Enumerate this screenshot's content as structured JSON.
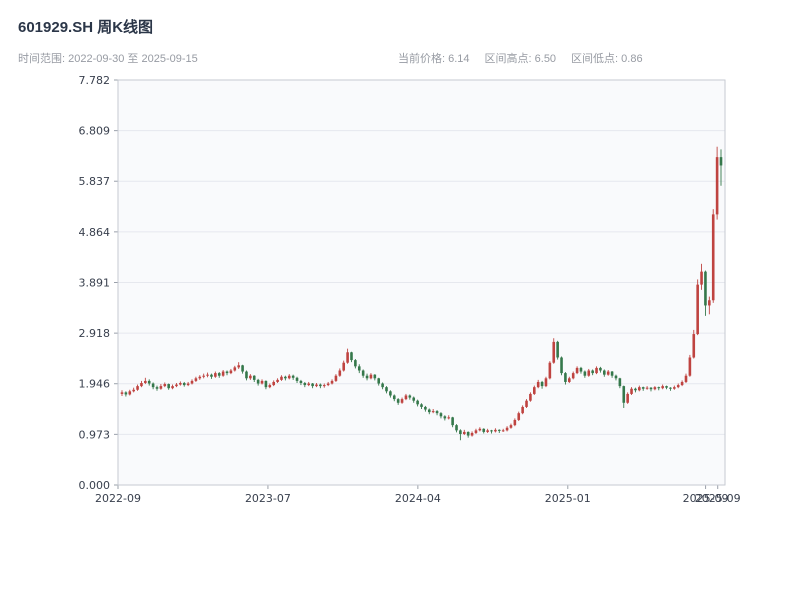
{
  "header": {
    "title": "601929.SH 周K线图",
    "time_range": "时间范围: 2022-09-30 至 2025-09-15",
    "stats": {
      "current": "当前价格: 6.14",
      "high": "区间高点: 6.50",
      "low": "区间低点: 0.86"
    }
  },
  "chart_data": {
    "type": "candlestick",
    "title": "601929.SH 周K线图",
    "symbol": "601929.SH",
    "interval": "weekly",
    "date_start": "2022-09-30",
    "date_end": "2025-09-15",
    "current_price": 6.14,
    "range_high": 6.5,
    "range_low": 0.86,
    "y_max": 7.782,
    "ylim": [
      0,
      7.782
    ],
    "grid": true,
    "up_color": "#bf4340",
    "down_color": "#35784b",
    "y_ticks": [
      "0.000",
      "0.973",
      "1.946",
      "2.918",
      "3.891",
      "4.864",
      "5.837",
      "6.809",
      "7.782"
    ],
    "x_ticks": [
      {
        "label": "2022-09",
        "pos": 0.0
      },
      {
        "label": "2023-07",
        "pos": 0.247
      },
      {
        "label": "2024-04",
        "pos": 0.494
      },
      {
        "label": "2025-01",
        "pos": 0.741
      },
      {
        "label": "2025-09",
        "pos": 0.968
      },
      {
        "label": "2025-09",
        "pos": 0.988
      }
    ],
    "candles": [
      [
        1.75,
        1.82,
        1.71,
        1.78
      ],
      [
        1.78,
        1.8,
        1.7,
        1.74
      ],
      [
        1.74,
        1.83,
        1.72,
        1.8
      ],
      [
        1.8,
        1.87,
        1.78,
        1.83
      ],
      [
        1.83,
        1.93,
        1.81,
        1.9
      ],
      [
        1.9,
        2.0,
        1.88,
        1.96
      ],
      [
        1.96,
        2.06,
        1.94,
        2.0
      ],
      [
        2.0,
        2.03,
        1.91,
        1.95
      ],
      [
        1.95,
        1.97,
        1.84,
        1.88
      ],
      [
        1.88,
        1.91,
        1.81,
        1.85
      ],
      [
        1.85,
        1.94,
        1.83,
        1.9
      ],
      [
        1.9,
        1.97,
        1.88,
        1.94
      ],
      [
        1.94,
        1.95,
        1.83,
        1.86
      ],
      [
        1.86,
        1.93,
        1.84,
        1.9
      ],
      [
        1.9,
        1.96,
        1.88,
        1.93
      ],
      [
        1.93,
        1.99,
        1.91,
        1.96
      ],
      [
        1.96,
        1.98,
        1.89,
        1.92
      ],
      [
        1.92,
        1.98,
        1.9,
        1.95
      ],
      [
        1.95,
        2.03,
        1.93,
        2.0
      ],
      [
        2.0,
        2.08,
        1.98,
        2.05
      ],
      [
        2.05,
        2.11,
        2.02,
        2.08
      ],
      [
        2.08,
        2.14,
        2.05,
        2.1
      ],
      [
        2.1,
        2.16,
        2.07,
        2.12
      ],
      [
        2.12,
        2.14,
        2.04,
        2.08
      ],
      [
        2.08,
        2.18,
        2.06,
        2.15
      ],
      [
        2.15,
        2.17,
        2.06,
        2.1
      ],
      [
        2.1,
        2.21,
        2.08,
        2.18
      ],
      [
        2.18,
        2.2,
        2.11,
        2.15
      ],
      [
        2.15,
        2.23,
        2.13,
        2.2
      ],
      [
        2.2,
        2.29,
        2.18,
        2.26
      ],
      [
        2.26,
        2.36,
        2.23,
        2.3
      ],
      [
        2.3,
        2.31,
        2.14,
        2.18
      ],
      [
        2.18,
        2.2,
        2.01,
        2.05
      ],
      [
        2.05,
        2.13,
        2.02,
        2.1
      ],
      [
        2.1,
        2.11,
        1.98,
        2.02
      ],
      [
        2.02,
        2.04,
        1.91,
        1.95
      ],
      [
        1.95,
        2.03,
        1.93,
        2.0
      ],
      [
        2.0,
        2.01,
        1.84,
        1.88
      ],
      [
        1.88,
        1.95,
        1.86,
        1.92
      ],
      [
        1.92,
        2.01,
        1.9,
        1.98
      ],
      [
        1.98,
        2.05,
        1.96,
        2.02
      ],
      [
        2.02,
        2.11,
        2.0,
        2.08
      ],
      [
        2.08,
        2.1,
        2.01,
        2.05
      ],
      [
        2.05,
        2.13,
        2.03,
        2.1
      ],
      [
        2.1,
        2.12,
        2.02,
        2.06
      ],
      [
        2.06,
        2.08,
        1.96,
        2.0
      ],
      [
        2.0,
        2.02,
        1.92,
        1.96
      ],
      [
        1.96,
        1.98,
        1.88,
        1.92
      ],
      [
        1.92,
        1.98,
        1.9,
        1.95
      ],
      [
        1.95,
        1.96,
        1.86,
        1.9
      ],
      [
        1.9,
        1.96,
        1.88,
        1.93
      ],
      [
        1.93,
        1.95,
        1.86,
        1.9
      ],
      [
        1.9,
        1.95,
        1.87,
        1.92
      ],
      [
        1.92,
        1.98,
        1.9,
        1.95
      ],
      [
        1.95,
        2.03,
        1.93,
        2.0
      ],
      [
        2.0,
        2.13,
        1.98,
        2.1
      ],
      [
        2.1,
        2.24,
        2.08,
        2.2
      ],
      [
        2.2,
        2.39,
        2.18,
        2.35
      ],
      [
        2.35,
        2.62,
        2.33,
        2.55
      ],
      [
        2.55,
        2.56,
        2.36,
        2.4
      ],
      [
        2.4,
        2.42,
        2.24,
        2.28
      ],
      [
        2.28,
        2.32,
        2.15,
        2.2
      ],
      [
        2.2,
        2.22,
        2.06,
        2.1
      ],
      [
        2.1,
        2.14,
        2.01,
        2.05
      ],
      [
        2.05,
        2.15,
        2.03,
        2.12
      ],
      [
        2.12,
        2.13,
        2.01,
        2.05
      ],
      [
        2.05,
        2.06,
        1.91,
        1.95
      ],
      [
        1.95,
        1.97,
        1.84,
        1.88
      ],
      [
        1.88,
        1.9,
        1.76,
        1.8
      ],
      [
        1.8,
        1.82,
        1.68,
        1.72
      ],
      [
        1.72,
        1.74,
        1.61,
        1.65
      ],
      [
        1.65,
        1.67,
        1.54,
        1.58
      ],
      [
        1.58,
        1.68,
        1.56,
        1.65
      ],
      [
        1.65,
        1.75,
        1.63,
        1.72
      ],
      [
        1.72,
        1.74,
        1.64,
        1.68
      ],
      [
        1.68,
        1.7,
        1.58,
        1.62
      ],
      [
        1.62,
        1.64,
        1.51,
        1.55
      ],
      [
        1.55,
        1.57,
        1.46,
        1.5
      ],
      [
        1.5,
        1.52,
        1.41,
        1.45
      ],
      [
        1.45,
        1.47,
        1.36,
        1.4
      ],
      [
        1.4,
        1.46,
        1.38,
        1.42
      ],
      [
        1.42,
        1.44,
        1.34,
        1.38
      ],
      [
        1.38,
        1.4,
        1.28,
        1.32
      ],
      [
        1.32,
        1.34,
        1.24,
        1.28
      ],
      [
        1.28,
        1.34,
        1.26,
        1.3
      ],
      [
        1.3,
        1.31,
        1.11,
        1.15
      ],
      [
        1.15,
        1.17,
        1.01,
        1.05
      ],
      [
        1.05,
        1.07,
        0.86,
        0.98
      ],
      [
        0.98,
        1.06,
        0.96,
        1.02
      ],
      [
        1.02,
        1.03,
        0.91,
        0.95
      ],
      [
        0.95,
        1.03,
        0.93,
        1.0
      ],
      [
        1.0,
        1.08,
        0.98,
        1.05
      ],
      [
        1.05,
        1.11,
        1.03,
        1.08
      ],
      [
        1.08,
        1.09,
        0.99,
        1.02
      ],
      [
        1.02,
        1.08,
        1.0,
        1.05
      ],
      [
        1.05,
        1.06,
        0.99,
        1.03
      ],
      [
        1.03,
        1.09,
        1.01,
        1.06
      ],
      [
        1.06,
        1.07,
        1.0,
        1.04
      ],
      [
        1.04,
        1.08,
        1.02,
        1.05
      ],
      [
        1.05,
        1.13,
        1.03,
        1.1
      ],
      [
        1.1,
        1.18,
        1.08,
        1.15
      ],
      [
        1.15,
        1.28,
        1.13,
        1.25
      ],
      [
        1.25,
        1.41,
        1.23,
        1.38
      ],
      [
        1.38,
        1.53,
        1.36,
        1.5
      ],
      [
        1.5,
        1.65,
        1.48,
        1.62
      ],
      [
        1.62,
        1.78,
        1.6,
        1.75
      ],
      [
        1.75,
        1.91,
        1.73,
        1.88
      ],
      [
        1.88,
        2.02,
        1.86,
        1.98
      ],
      [
        1.98,
        2.0,
        1.85,
        1.9
      ],
      [
        1.9,
        2.08,
        1.88,
        2.05
      ],
      [
        2.05,
        2.38,
        2.03,
        2.35
      ],
      [
        2.35,
        2.82,
        2.33,
        2.75
      ],
      [
        2.75,
        2.77,
        2.41,
        2.45
      ],
      [
        2.45,
        2.47,
        2.11,
        2.15
      ],
      [
        2.15,
        2.17,
        1.93,
        1.98
      ],
      [
        1.98,
        2.08,
        1.96,
        2.05
      ],
      [
        2.05,
        2.18,
        2.03,
        2.15
      ],
      [
        2.15,
        2.28,
        2.13,
        2.25
      ],
      [
        2.25,
        2.27,
        2.14,
        2.18
      ],
      [
        2.18,
        2.2,
        2.06,
        2.1
      ],
      [
        2.1,
        2.23,
        2.08,
        2.2
      ],
      [
        2.2,
        2.22,
        2.11,
        2.15
      ],
      [
        2.15,
        2.28,
        2.13,
        2.25
      ],
      [
        2.25,
        2.27,
        2.16,
        2.2
      ],
      [
        2.2,
        2.22,
        2.08,
        2.12
      ],
      [
        2.12,
        2.21,
        2.1,
        2.18
      ],
      [
        2.18,
        2.19,
        2.06,
        2.1
      ],
      [
        2.1,
        2.12,
        2.01,
        2.05
      ],
      [
        2.05,
        2.06,
        1.86,
        1.9
      ],
      [
        1.9,
        1.91,
        1.48,
        1.58
      ],
      [
        1.58,
        1.78,
        1.56,
        1.75
      ],
      [
        1.75,
        1.88,
        1.73,
        1.85
      ],
      [
        1.85,
        1.87,
        1.78,
        1.82
      ],
      [
        1.82,
        1.91,
        1.8,
        1.88
      ],
      [
        1.88,
        1.89,
        1.81,
        1.85
      ],
      [
        1.85,
        1.9,
        1.83,
        1.87
      ],
      [
        1.87,
        1.88,
        1.8,
        1.84
      ],
      [
        1.84,
        1.9,
        1.82,
        1.88
      ],
      [
        1.88,
        1.89,
        1.82,
        1.86
      ],
      [
        1.86,
        1.93,
        1.84,
        1.9
      ],
      [
        1.9,
        1.91,
        1.84,
        1.87
      ],
      [
        1.87,
        1.88,
        1.81,
        1.85
      ],
      [
        1.85,
        1.91,
        1.83,
        1.88
      ],
      [
        1.88,
        1.95,
        1.86,
        1.92
      ],
      [
        1.92,
        2.01,
        1.9,
        1.98
      ],
      [
        1.98,
        2.14,
        1.96,
        2.1
      ],
      [
        2.1,
        2.5,
        2.08,
        2.45
      ],
      [
        2.45,
        2.98,
        2.43,
        2.9
      ],
      [
        2.9,
        3.95,
        2.88,
        3.85
      ],
      [
        3.85,
        4.25,
        3.75,
        4.1
      ],
      [
        4.1,
        4.12,
        3.25,
        3.45
      ],
      [
        3.45,
        3.62,
        3.28,
        3.55
      ],
      [
        3.55,
        5.3,
        3.5,
        5.2
      ],
      [
        5.2,
        6.5,
        5.1,
        6.3
      ],
      [
        6.3,
        6.45,
        5.75,
        6.14
      ]
    ]
  }
}
